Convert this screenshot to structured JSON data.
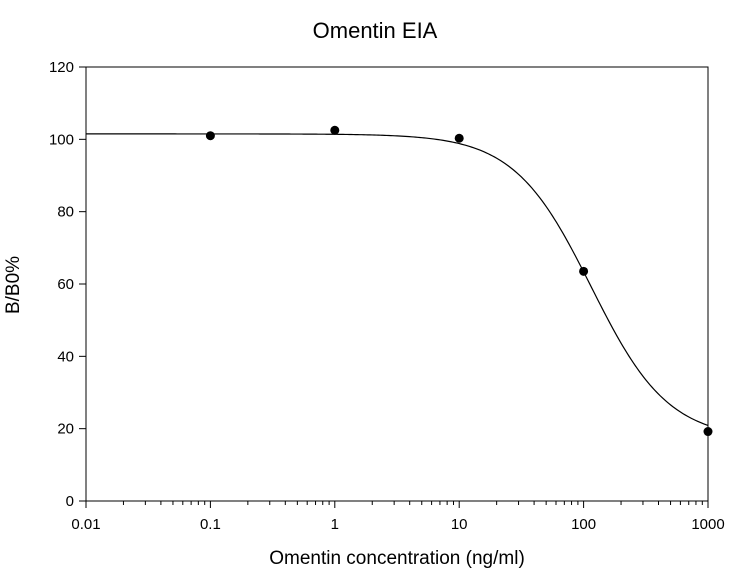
{
  "chart_data": {
    "type": "scatter",
    "title": "Omentin EIA",
    "xlabel": "Omentin concentration (ng/ml)",
    "ylabel": "B/B0%",
    "x_scale": "log",
    "xlim": [
      0.01,
      1000
    ],
    "ylim": [
      0,
      120
    ],
    "x_ticks": [
      0.01,
      0.1,
      1,
      10,
      100,
      1000
    ],
    "x_tick_labels": [
      "0.01",
      "0.1",
      "1",
      "10",
      "100",
      "1000"
    ],
    "y_ticks": [
      0,
      20,
      40,
      60,
      80,
      100,
      120
    ],
    "y_tick_labels": [
      "0",
      "20",
      "40",
      "60",
      "80",
      "100",
      "120"
    ],
    "grid": false,
    "series": [
      {
        "x": [
          0.1,
          1,
          10,
          100,
          1000
        ],
        "y": [
          101,
          102.5,
          100.3,
          63.5,
          19.2
        ],
        "color": "#000000"
      }
    ],
    "fit_curve": {
      "model": "4PL",
      "top": 101.5,
      "bottom": 17,
      "ec50": 115,
      "hill": 1.4,
      "color": "#000000"
    }
  }
}
